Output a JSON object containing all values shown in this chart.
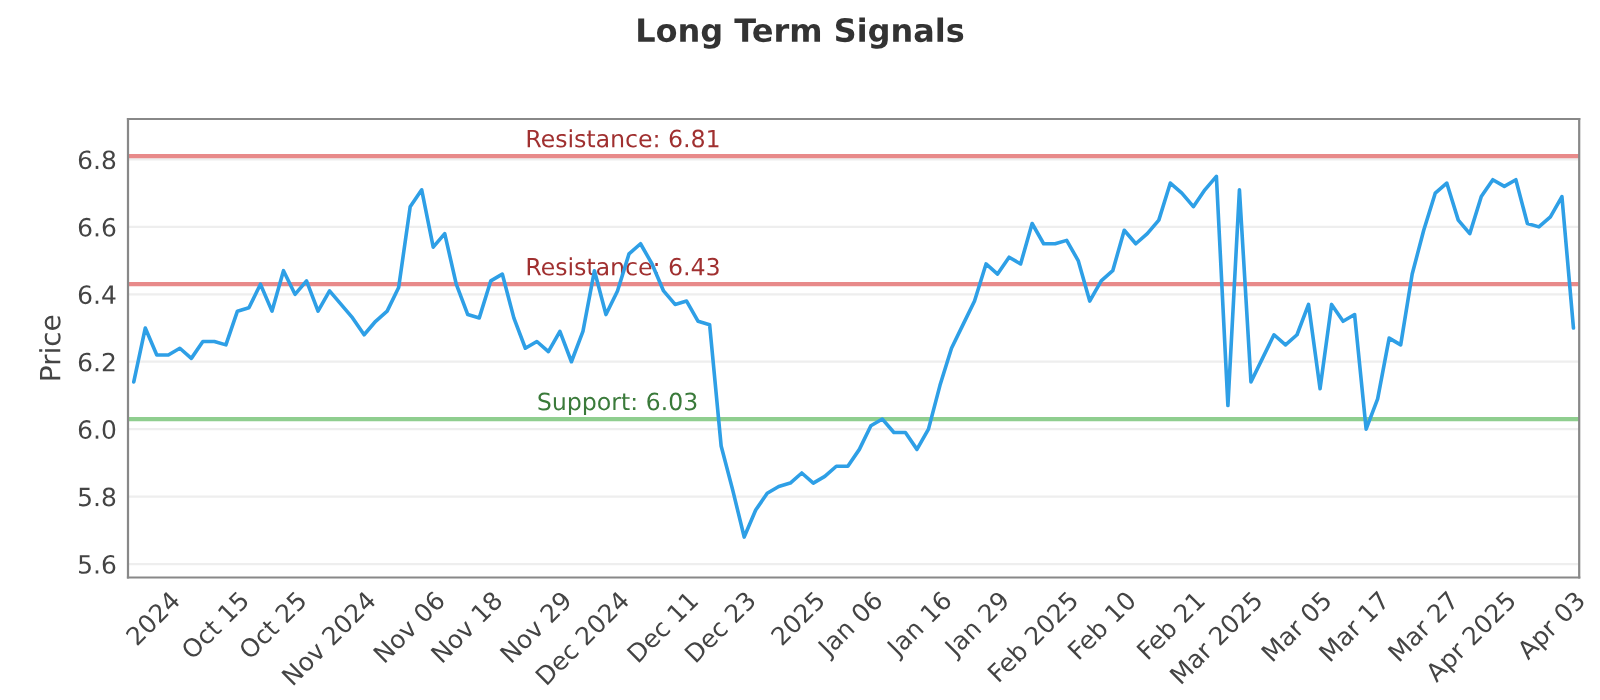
{
  "chart_data": {
    "type": "line",
    "title": "Long Term Signals",
    "ylabel": "Price",
    "categories": [
      null,
      null,
      null,
      "2024",
      null,
      null,
      null,
      null,
      null,
      "Oct 15",
      null,
      null,
      null,
      null,
      "Oct 25",
      null,
      null,
      null,
      null,
      null,
      "Nov 2024",
      null,
      null,
      null,
      null,
      null,
      "Nov 06",
      null,
      null,
      null,
      null,
      "Nov 18",
      null,
      null,
      null,
      null,
      null,
      "Nov 29",
      null,
      null,
      null,
      null,
      "Dec 2024",
      null,
      null,
      null,
      null,
      null,
      "Dec 11",
      null,
      null,
      null,
      null,
      "Dec 23",
      null,
      null,
      null,
      null,
      null,
      "2025",
      null,
      null,
      null,
      null,
      "Jan 06",
      null,
      null,
      null,
      null,
      null,
      "Jan 16",
      null,
      null,
      null,
      null,
      "Jan 29",
      null,
      null,
      null,
      null,
      null,
      "Feb 2025",
      null,
      null,
      null,
      null,
      "Feb 10",
      null,
      null,
      null,
      null,
      null,
      "Feb 21",
      null,
      null,
      null,
      null,
      "Mar 2025",
      null,
      null,
      null,
      null,
      null,
      "Mar 05",
      null,
      null,
      null,
      null,
      "Mar 17",
      null,
      null,
      null,
      null,
      null,
      "Mar 27",
      null,
      null,
      null,
      null,
      "Apr 2025",
      null,
      null,
      null,
      null,
      null,
      "Apr 03"
    ],
    "series": [
      {
        "color": "#2e9fe6",
        "values": [
          6.14,
          6.3,
          6.22,
          6.22,
          6.24,
          6.21,
          6.26,
          6.26,
          6.25,
          6.35,
          6.36,
          6.43,
          6.35,
          6.47,
          6.4,
          6.44,
          6.35,
          6.41,
          6.37,
          6.33,
          6.28,
          6.32,
          6.35,
          6.42,
          6.66,
          6.71,
          6.54,
          6.58,
          6.43,
          6.34,
          6.33,
          6.44,
          6.46,
          6.33,
          6.24,
          6.26,
          6.23,
          6.29,
          6.2,
          6.29,
          6.47,
          6.34,
          6.41,
          6.52,
          6.55,
          6.49,
          6.41,
          6.37,
          6.38,
          6.32,
          6.31,
          5.95,
          5.82,
          5.68,
          5.76,
          5.81,
          5.83,
          5.84,
          5.87,
          5.84,
          5.86,
          5.89,
          5.89,
          5.94,
          6.01,
          6.03,
          5.99,
          5.99,
          5.94,
          6.0,
          6.13,
          6.24,
          6.31,
          6.38,
          6.49,
          6.46,
          6.51,
          6.49,
          6.61,
          6.55,
          6.55,
          6.56,
          6.5,
          6.38,
          6.44,
          6.47,
          6.59,
          6.55,
          6.58,
          6.62,
          6.73,
          6.7,
          6.66,
          6.71,
          6.75,
          6.07,
          6.71,
          6.14,
          6.21,
          6.28,
          6.25,
          6.28,
          6.37,
          6.12,
          6.37,
          6.32,
          6.34,
          6.0,
          6.09,
          6.27,
          6.25,
          6.46,
          6.59,
          6.7,
          6.73,
          6.62,
          6.58,
          6.69,
          6.74,
          6.72,
          6.74,
          6.61,
          6.6,
          6.63,
          6.69,
          6.3
        ]
      }
    ],
    "ylim": [
      5.56,
      6.92
    ],
    "yticks": [
      5.6,
      5.8,
      {
        "value": 6.0,
        "label": "6.0"
      },
      6.2,
      6.4,
      6.6,
      6.8
    ],
    "grid": "y",
    "marker": "none",
    "line_style": "solid",
    "ref_lines": [
      {
        "axis": "y",
        "value": 6.81,
        "label": "Resistance: 6.81",
        "color": "#e88a8a"
      },
      {
        "axis": "y",
        "value": 6.43,
        "label": "Resistance: 6.43",
        "color": "#e88a8a"
      },
      {
        "axis": "y",
        "value": 6.03,
        "label": "Support: 6.03",
        "color": "#8fce8f"
      }
    ]
  }
}
